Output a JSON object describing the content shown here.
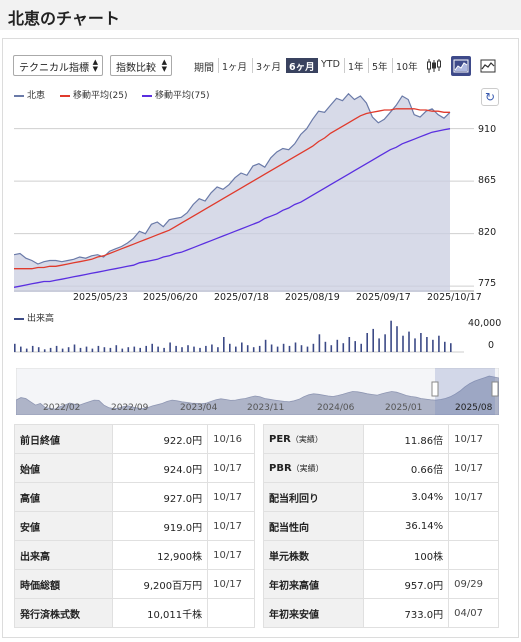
{
  "title": "北恵のチャート",
  "toolbar": {
    "technical": "テクニカル指標",
    "compare": "指数比較",
    "period_label": "期間",
    "periods": [
      {
        "label": "1ヶ月"
      },
      {
        "label": "3ヶ月"
      },
      {
        "label": "6ヶ月"
      },
      {
        "label": "YTD"
      },
      {
        "label": "1年"
      },
      {
        "label": "5年"
      },
      {
        "label": "10年"
      }
    ],
    "active_period": "6ヶ月"
  },
  "legend": {
    "price": "北恵",
    "ma25": "移動平均(25)",
    "ma75": "移動平均(75)",
    "volume": "出来高"
  },
  "colors": {
    "price": "#6a7aa8",
    "ma25": "#e03a2c",
    "ma75": "#5a2fe0",
    "area": "#c9cee0",
    "volume": "#3c4a86",
    "active": "#39425f"
  },
  "chart_data": [
    {
      "type": "area",
      "x_ticks": [
        "2025/05/23",
        "2025/06/20",
        "2025/07/18",
        "2025/08/19",
        "2025/09/17",
        "2025/10/17"
      ],
      "y_ticks": [
        910,
        865,
        820,
        775
      ],
      "series": [
        {
          "name": "北恵",
          "values": [
            802,
            803,
            799,
            797,
            794,
            796,
            797,
            797,
            796,
            797,
            798,
            800,
            799,
            801,
            802,
            800,
            805,
            807,
            809,
            812,
            816,
            822,
            820,
            828,
            830,
            826,
            832,
            833,
            834,
            838,
            845,
            850,
            848,
            855,
            860,
            858,
            862,
            868,
            872,
            870,
            878,
            880,
            877,
            885,
            890,
            893,
            892,
            897,
            905,
            910,
            918,
            925,
            924,
            930,
            936,
            934,
            940,
            935,
            938,
            932,
            920,
            915,
            918,
            924,
            930,
            938,
            935,
            922,
            920,
            925,
            927,
            922,
            919,
            924
          ]
        },
        {
          "name": "移動平均(25)",
          "values": [
            790,
            790,
            790,
            790,
            791,
            791,
            792,
            792,
            793,
            794,
            795,
            796,
            797,
            798,
            800,
            801,
            803,
            805,
            807,
            809,
            811,
            813,
            815,
            817,
            819,
            821,
            823,
            826,
            829,
            832,
            835,
            838,
            841,
            844,
            847,
            850,
            853,
            856,
            859,
            862,
            865,
            868,
            871,
            874,
            877,
            880,
            883,
            886,
            889,
            892,
            895,
            899,
            902,
            906,
            909,
            912,
            915,
            918,
            921,
            923,
            924,
            925,
            926,
            926,
            927,
            927,
            927,
            927,
            926,
            926,
            925,
            925,
            924,
            924
          ]
        },
        {
          "name": "移動平均(75)",
          "values": [
            774,
            775,
            776,
            777,
            778,
            779,
            779,
            780,
            781,
            782,
            783,
            784,
            785,
            786,
            787,
            788,
            789,
            790,
            791,
            792,
            793,
            795,
            796,
            797,
            798,
            800,
            801,
            803,
            804,
            806,
            808,
            810,
            812,
            814,
            816,
            818,
            820,
            822,
            824,
            826,
            828,
            830,
            833,
            835,
            837,
            840,
            842,
            845,
            847,
            850,
            853,
            856,
            859,
            862,
            865,
            868,
            871,
            874,
            877,
            880,
            883,
            886,
            889,
            892,
            894,
            897,
            899,
            901,
            903,
            905,
            907,
            908,
            909,
            910
          ]
        }
      ]
    },
    {
      "type": "bar",
      "y_ticks": [
        "40,000",
        "0"
      ],
      "values": [
        12000,
        8000,
        5000,
        9000,
        7000,
        4000,
        6000,
        9000,
        5000,
        7000,
        11000,
        6000,
        8000,
        5000,
        9000,
        7000,
        6000,
        10000,
        5000,
        7000,
        8000,
        6000,
        9000,
        12000,
        8000,
        6000,
        14000,
        9000,
        7000,
        10000,
        8000,
        6000,
        9000,
        11000,
        7000,
        22000,
        12000,
        8000,
        14000,
        10000,
        7000,
        9000,
        18000,
        11000,
        8000,
        12000,
        9000,
        14000,
        10000,
        8000,
        12000,
        26000,
        15000,
        10000,
        18000,
        13000,
        22000,
        16000,
        12000,
        28000,
        34000,
        20000,
        26000,
        46000,
        38000,
        24000,
        30000,
        20000,
        28000,
        22000,
        18000,
        24000,
        15000,
        12900
      ]
    }
  ],
  "navigator": {
    "labels": [
      "2022/02",
      "2022/09",
      "2023/04",
      "2023/11",
      "2024/06",
      "2025/01",
      "2025/08"
    ],
    "values": [
      790,
      805,
      800,
      780,
      760,
      770,
      745,
      740,
      735,
      750,
      760,
      772,
      765,
      760,
      770,
      780,
      790,
      788,
      760,
      745,
      738,
      742,
      750,
      755,
      748,
      742,
      738,
      745,
      755,
      762,
      770,
      782,
      790,
      786,
      780,
      776,
      772,
      770,
      768,
      772,
      782,
      792,
      798,
      794,
      788,
      790,
      796,
      800,
      808,
      815,
      810,
      800,
      795,
      790,
      786,
      782,
      780,
      786,
      795,
      810,
      822,
      828,
      825,
      820,
      815,
      812,
      818,
      826,
      835,
      842,
      840,
      835,
      828,
      824,
      820,
      828,
      836,
      842,
      838,
      828,
      818,
      812,
      808,
      800,
      796,
      792,
      790,
      794,
      800,
      810,
      826,
      845,
      870,
      890,
      905,
      915,
      925,
      935,
      930,
      924
    ]
  },
  "table_left": [
    {
      "label": "前日終値",
      "value": "922.0円",
      "date": "10/16"
    },
    {
      "label": "始値",
      "value": "924.0円",
      "date": "10/17"
    },
    {
      "label": "高値",
      "value": "927.0円",
      "date": "10/17"
    },
    {
      "label": "安値",
      "value": "919.0円",
      "date": "10/17"
    },
    {
      "label": "出来高",
      "value": "12,900株",
      "date": "10/17"
    },
    {
      "label": "時価総額",
      "value": "9,200百万円",
      "date": "10/17"
    },
    {
      "label": "発行済株式数",
      "value": "10,011千株",
      "date": ""
    }
  ],
  "table_right": [
    {
      "label": "PER",
      "sub": "（実績）",
      "value": "11.86倍",
      "date": "10/17"
    },
    {
      "label": "PBR",
      "sub": "（実績）",
      "value": "0.66倍",
      "date": "10/17"
    },
    {
      "label": "配当利回り",
      "sub": "",
      "value": "3.04%",
      "date": "10/17"
    },
    {
      "label": "配当性向",
      "sub": "",
      "value": "36.14%",
      "date": ""
    },
    {
      "label": "単元株数",
      "sub": "",
      "value": "100株",
      "date": ""
    },
    {
      "label": "年初来高値",
      "sub": "",
      "value": "957.0円",
      "date": "09/29"
    },
    {
      "label": "年初来安値",
      "sub": "",
      "value": "733.0円",
      "date": "04/07"
    }
  ]
}
